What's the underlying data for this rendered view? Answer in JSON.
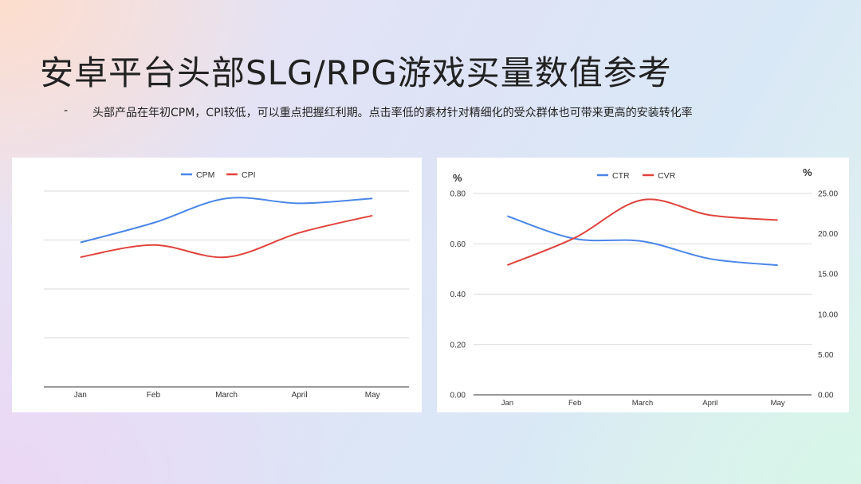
{
  "slide": {
    "title": "安卓平台头部SLG/RPG游戏买量数值参考",
    "bullet_marker": "-",
    "bullet_text": "头部产品在年初CPM，CPI较低，可以重点把握红利期。点击率低的素材针对精细化的受众群体也可带来更高的安装转化率"
  },
  "chart_data": [
    {
      "type": "line",
      "categories": [
        "Jan",
        "Feb",
        "March",
        "April",
        "May"
      ],
      "series": [
        {
          "name": "CPM",
          "color": "#4a86e8",
          "values": [
            2.95,
            3.35,
            3.85,
            3.75,
            3.85
          ]
        },
        {
          "name": "CPI",
          "color": "#e0433b",
          "values": [
            2.65,
            2.9,
            2.65,
            3.15,
            3.5
          ]
        }
      ],
      "ylim": [
        0,
        4
      ],
      "gridlines": 5,
      "y_tick_labels_shown": false,
      "legend_position": "top-center"
    },
    {
      "type": "line",
      "categories": [
        "Jan",
        "Feb",
        "March",
        "April",
        "May"
      ],
      "series": [
        {
          "name": "CTR",
          "axis": "left",
          "color": "#4a86e8",
          "values": [
            0.71,
            0.62,
            0.61,
            0.54,
            0.515
          ]
        },
        {
          "name": "CVR",
          "axis": "right",
          "color": "#e0433b",
          "values": [
            16.1,
            19.5,
            24.2,
            22.3,
            21.7
          ]
        }
      ],
      "y_left": {
        "label": "%",
        "ylim": [
          0,
          0.8
        ],
        "ticks": [
          "0.00",
          "0.20",
          "0.40",
          "0.60",
          "0.80"
        ]
      },
      "y_right": {
        "label": "%",
        "ylim": [
          0,
          25
        ],
        "ticks": [
          "0.00",
          "5.00",
          "10.00",
          "15.00",
          "20.00",
          "25.00"
        ]
      },
      "legend_position": "top-center"
    }
  ]
}
